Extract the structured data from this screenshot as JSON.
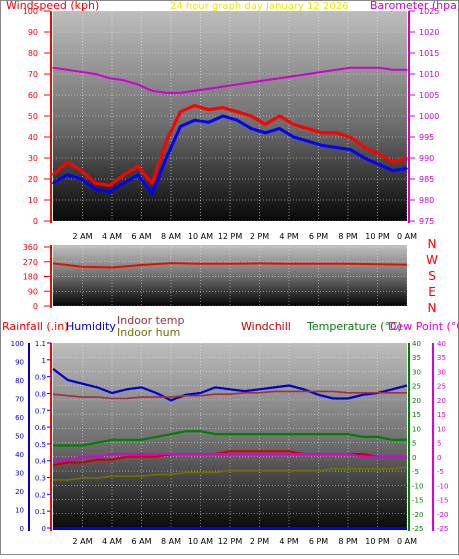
{
  "title_line": "24 hour graph day   January 12 2026",
  "colors": {
    "gust": "#ff0000",
    "wind": "#0000ff",
    "baro": "#d000d0",
    "dir": "#e01000",
    "humidity": "#0000cc",
    "indoor_temp": "#a03040",
    "indoor_hum": "#707000",
    "windchill": "#cc0000",
    "temperature": "#008000",
    "dewpoint": "#dd00dd",
    "rain": "#0000ff"
  },
  "panel_wind": {
    "left_label": "Windspeed (kph)",
    "right_label": "Barometer (hpa)",
    "left_ticks": [
      "0",
      "10",
      "20",
      "30",
      "40",
      "50",
      "60",
      "70",
      "80",
      "90",
      "100"
    ],
    "right_ticks": [
      "975",
      "980",
      "985",
      "990",
      "995",
      "1000",
      "1005",
      "1010",
      "1015",
      "1020",
      "1025"
    ]
  },
  "panel_dir": {
    "left_ticks": [
      "0",
      "90",
      "180",
      "270",
      "360"
    ],
    "compass": [
      "N",
      "W",
      "S",
      "E",
      "N"
    ]
  },
  "panel_temp": {
    "rain_label": "Rainfall (.in)",
    "humidity_label": "Humidity",
    "indoor_temp_label": "Indoor temp",
    "indoor_hum_label": "Indoor hum",
    "windchill_label": "Windchill",
    "temperature_label": "Temperature (°C)",
    "dewpoint_label": "Dew Point (°C)",
    "hum_ticks": [
      "0",
      "10",
      "20",
      "30",
      "40",
      "50",
      "60",
      "70",
      "80",
      "90",
      "100"
    ],
    "rain_ticks": [
      "0",
      "0.1",
      "0.2",
      "0.3",
      "0.4",
      "0.5",
      "0.6",
      "0.7",
      "0.8",
      "0.9",
      "1",
      "1.1"
    ],
    "temp_ticks": [
      "-25",
      "-20",
      "-15",
      "-10",
      "-5",
      "0",
      "5",
      "10",
      "15",
      "20",
      "25",
      "30",
      "35",
      "40"
    ],
    "dew_ticks": [
      "-25",
      "-20",
      "-15",
      "-10",
      "-5",
      "0",
      "5",
      "10",
      "15",
      "20",
      "25",
      "30",
      "35",
      "40"
    ]
  },
  "x_labels": [
    "2 AM",
    "4 AM",
    "6 AM",
    "8 AM",
    "10 AM",
    "12 PM",
    "2 PM",
    "4 PM",
    "6 PM",
    "8 PM",
    "10 PM",
    "0 AM"
  ],
  "chart_data": [
    {
      "type": "line",
      "x": [
        "0 AM",
        "1 AM",
        "2 AM",
        "3 AM",
        "4 AM",
        "5 AM",
        "6 AM",
        "7 AM",
        "7:30 AM",
        "8 AM",
        "9 AM",
        "10 AM",
        "11 AM",
        "12 PM",
        "1 PM",
        "2 PM",
        "3 PM",
        "4 PM",
        "5 PM",
        "6 PM",
        "7 PM",
        "8 PM",
        "9 PM",
        "10 PM",
        "11 PM",
        "0 AM"
      ],
      "series": [
        {
          "name": "Windspeed (kph)",
          "axis": "left",
          "values": [
            18,
            22,
            20,
            15,
            14,
            18,
            22,
            13,
            30,
            45,
            48,
            47,
            50,
            48,
            44,
            42,
            44,
            40,
            38,
            36,
            35,
            34,
            30,
            27,
            24,
            25
          ]
        },
        {
          "name": "Gust",
          "axis": "left",
          "values": [
            22,
            28,
            24,
            18,
            17,
            22,
            26,
            18,
            38,
            52,
            55,
            53,
            54,
            52,
            50,
            46,
            50,
            46,
            44,
            42,
            42,
            40,
            35,
            32,
            28,
            30
          ]
        },
        {
          "name": "Barometer (hpa)",
          "axis": "right",
          "values": [
            1011.5,
            1011,
            1010.5,
            1010,
            1009,
            1008.5,
            1007.5,
            1006,
            1005.5,
            1005.5,
            1006,
            1006.5,
            1007,
            1007.5,
            1008,
            1008.5,
            1009,
            1009.5,
            1010,
            1010.5,
            1011,
            1011.5,
            1011.5,
            1011.5,
            1011,
            1011
          ]
        }
      ],
      "ylim_left": [
        0,
        100
      ],
      "ylim_right": [
        975,
        1025
      ]
    },
    {
      "type": "line",
      "x": [
        "0 AM",
        "2 AM",
        "4 AM",
        "6 AM",
        "8 AM",
        "10 AM",
        "12 PM",
        "2 PM",
        "4 PM",
        "6 PM",
        "8 PM",
        "10 PM",
        "0 AM"
      ],
      "series": [
        {
          "name": "Wind direction",
          "values": [
            260,
            240,
            235,
            250,
            262,
            258,
            258,
            260,
            258,
            258,
            258,
            255,
            252
          ]
        }
      ],
      "ylim": [
        0,
        360
      ]
    },
    {
      "type": "line",
      "x": [
        "0 AM",
        "1 AM",
        "2 AM",
        "3 AM",
        "4 AM",
        "5 AM",
        "6 AM",
        "7 AM",
        "8 AM",
        "9 AM",
        "10 AM",
        "11 AM",
        "12 PM",
        "1 PM",
        "2 PM",
        "3 PM",
        "4 PM",
        "5 PM",
        "6 PM",
        "7 PM",
        "8 PM",
        "9 PM",
        "10 PM",
        "11 PM",
        "0 AM"
      ],
      "series": [
        {
          "name": "Humidity",
          "axis": "hum",
          "values": [
            86,
            80,
            78,
            76,
            73,
            75,
            76,
            73,
            69,
            72,
            73,
            76,
            75,
            74,
            75,
            76,
            77,
            75,
            72,
            70,
            70,
            72,
            73,
            75,
            77
          ]
        },
        {
          "name": "Indoor temp",
          "axis": "temp",
          "values": [
            22,
            21.5,
            21,
            21,
            20.5,
            20.5,
            21,
            21,
            21,
            21.5,
            21.5,
            22,
            22,
            22.5,
            22.5,
            23,
            23,
            23,
            23,
            23,
            22.5,
            22.5,
            22.5,
            22.5,
            22.5
          ]
        },
        {
          "name": "Indoor hum",
          "axis": "hum",
          "values": [
            26,
            26,
            27,
            27,
            28,
            28,
            28,
            29,
            29,
            30,
            30,
            30,
            31,
            31,
            31,
            31,
            31,
            31,
            31,
            32,
            32,
            32,
            32,
            32,
            33
          ]
        },
        {
          "name": "Windchill",
          "axis": "temp",
          "values": [
            -3,
            -2,
            -2,
            -1,
            -1,
            0,
            0,
            0,
            1,
            1,
            1,
            1,
            2,
            2,
            2,
            2,
            2,
            1,
            1,
            1,
            1,
            1,
            0,
            0,
            0
          ]
        },
        {
          "name": "Temperature (°C)",
          "axis": "temp",
          "values": [
            4,
            4,
            4,
            5,
            6,
            6,
            6,
            7,
            8,
            9,
            9,
            8,
            8,
            8,
            8,
            8,
            8,
            8,
            8,
            8,
            8,
            7,
            7,
            6,
            6
          ]
        },
        {
          "name": "Dew Point (°C)",
          "axis": "temp",
          "values": [
            -1,
            -1,
            0,
            0,
            1,
            1,
            1,
            1,
            1,
            1,
            1,
            1,
            1,
            1,
            1,
            1,
            1,
            1,
            1,
            1,
            1,
            0,
            0,
            0,
            0
          ]
        },
        {
          "name": "Rainfall (.in)",
          "axis": "rain",
          "values": [
            0,
            0,
            0,
            0,
            0,
            0,
            0,
            0,
            0,
            0,
            0,
            0,
            0,
            0,
            0,
            0,
            0,
            0,
            0,
            0,
            0,
            0,
            0,
            0,
            0
          ]
        }
      ],
      "ylim_hum": [
        0,
        100
      ],
      "ylim_temp": [
        -25,
        40
      ]
    }
  ]
}
